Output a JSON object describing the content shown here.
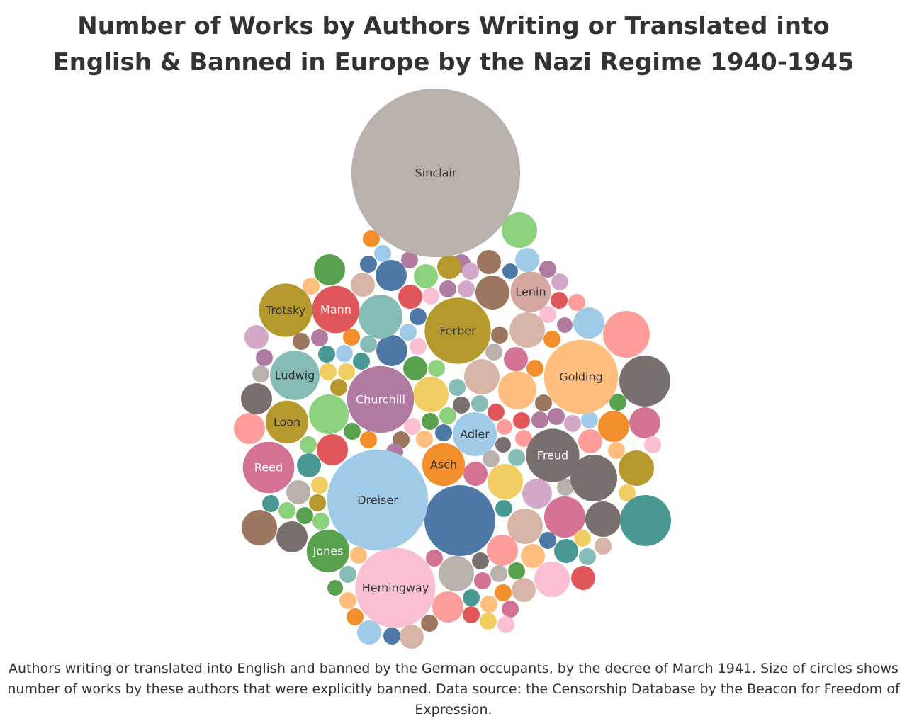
{
  "chart_data": {
    "type": "packed-bubble",
    "title": "Number of Works by Authors Writing or Translated into English & Banned in Europe by the Nazi Regime 1940-1945",
    "caption": "Authors writing or translated into English and banned by the German occupants, by the decree of March 1941. Size of circles shows number of works by these authors that were explicitly banned.  Data source: the Censorship Database by the Beacon for Freedom of Expression.",
    "size_measure": "number of works explicitly banned",
    "labeled_bubbles": [
      {
        "label": "Sinclair",
        "value": 28,
        "color": "#bab0ac"
      },
      {
        "label": "Dreiser",
        "value": 10,
        "color": "#a0cbe8"
      },
      {
        "label": "Hemingway",
        "value": 6.3,
        "color": "#fabfd2"
      },
      {
        "label": "Golding",
        "value": 5.4,
        "color": "#ffbe7d"
      },
      {
        "label": "Ferber",
        "value": 4.3,
        "color": "#b6992d"
      },
      {
        "label": "Churchill",
        "value": 4.4,
        "color": "#b07aa1"
      },
      {
        "label": "Freud",
        "value": 2.8,
        "color": "#79706e"
      },
      {
        "label": "Ludwig",
        "value": 2.4,
        "color": "#86bcb6"
      },
      {
        "label": "Trotsky",
        "value": 2.8,
        "color": "#b6992d"
      },
      {
        "label": "Reed",
        "value": 2.6,
        "color": "#d37295"
      },
      {
        "label": "Mann",
        "value": 2.2,
        "color": "#e15759"
      },
      {
        "label": "Adler",
        "value": 1.9,
        "color": "#a0cbe8"
      },
      {
        "label": "Loon",
        "value": 1.8,
        "color": "#b6992d"
      },
      {
        "label": "Jones",
        "value": 1.8,
        "color": "#59a14f"
      },
      {
        "label": "Lenin",
        "value": 1.6,
        "color": "#d4a6a0"
      },
      {
        "label": "Asch",
        "value": 1.8,
        "color": "#f28e2b"
      }
    ],
    "unlabeled_bubble_count": 167,
    "palette": [
      "#bab0ac",
      "#a0cbe8",
      "#fabfd2",
      "#ffbe7d",
      "#b6992d",
      "#b07aa1",
      "#79706e",
      "#86bcb6",
      "#d37295",
      "#e15759",
      "#59a14f",
      "#d4a6a0",
      "#f28e2b",
      "#4e79a7",
      "#8cd17d",
      "#ff9d9a",
      "#499894",
      "#9d7660",
      "#f1ce63",
      "#d7b5a6",
      "#d4a6c8"
    ]
  }
}
